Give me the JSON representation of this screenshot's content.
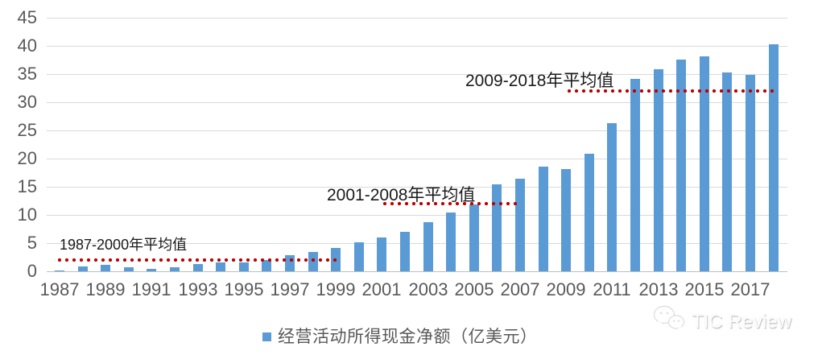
{
  "chart_data": {
    "type": "bar",
    "series_name": "经营活动所得现金净额（亿美元）",
    "unit": "亿美元",
    "x": [
      1987,
      1988,
      1989,
      1990,
      1991,
      1992,
      1993,
      1994,
      1995,
      1996,
      1997,
      1998,
      1999,
      2000,
      2001,
      2002,
      2003,
      2004,
      2005,
      2006,
      2007,
      2008,
      2009,
      2010,
      2011,
      2012,
      2013,
      2014,
      2015,
      2016,
      2017,
      2018
    ],
    "values": [
      0.1,
      0.9,
      1.2,
      0.7,
      0.4,
      0.7,
      1.3,
      1.5,
      1.6,
      2.0,
      2.9,
      3.4,
      4.2,
      5.1,
      6.0,
      7.0,
      8.7,
      10.4,
      11.9,
      15.4,
      16.4,
      18.6,
      18.1,
      20.8,
      26.3,
      34.1,
      35.8,
      37.6,
      38.1,
      35.3,
      34.9,
      40.3
    ],
    "ylim": [
      0,
      45
    ],
    "ytick_step": 5,
    "yticks": [
      0,
      5,
      10,
      15,
      20,
      25,
      30,
      35,
      40,
      45
    ],
    "xtick_labels": [
      "1987",
      "1989",
      "1991",
      "1993",
      "1995",
      "1997",
      "1999",
      "2001",
      "2003",
      "2005",
      "2007",
      "2009",
      "2011",
      "2013",
      "2015",
      "2017"
    ],
    "grid": true,
    "legend_position": "bottom",
    "avg_lines": [
      {
        "label": "1987-2000年平均值",
        "value": 2,
        "from_year": 1986.85,
        "to_year": 1999.1
      },
      {
        "label": "2001-2008年平均值",
        "value": 12,
        "from_year": 2001.0,
        "to_year": 2007.05
      },
      {
        "label": "2009-2018年平均值",
        "value": 32,
        "from_year": 2009.0,
        "to_year": 2018.05
      }
    ]
  },
  "colors": {
    "bar": "#5b9bd5",
    "avg_line": "#c00000",
    "axis_text": "#595959",
    "gridline": "#d9d9d9",
    "annotation_text": "#1a1a1a"
  },
  "legend": {
    "label": "经营活动所得现金净额（亿美元）"
  },
  "watermark": {
    "text": "TIC Review"
  }
}
